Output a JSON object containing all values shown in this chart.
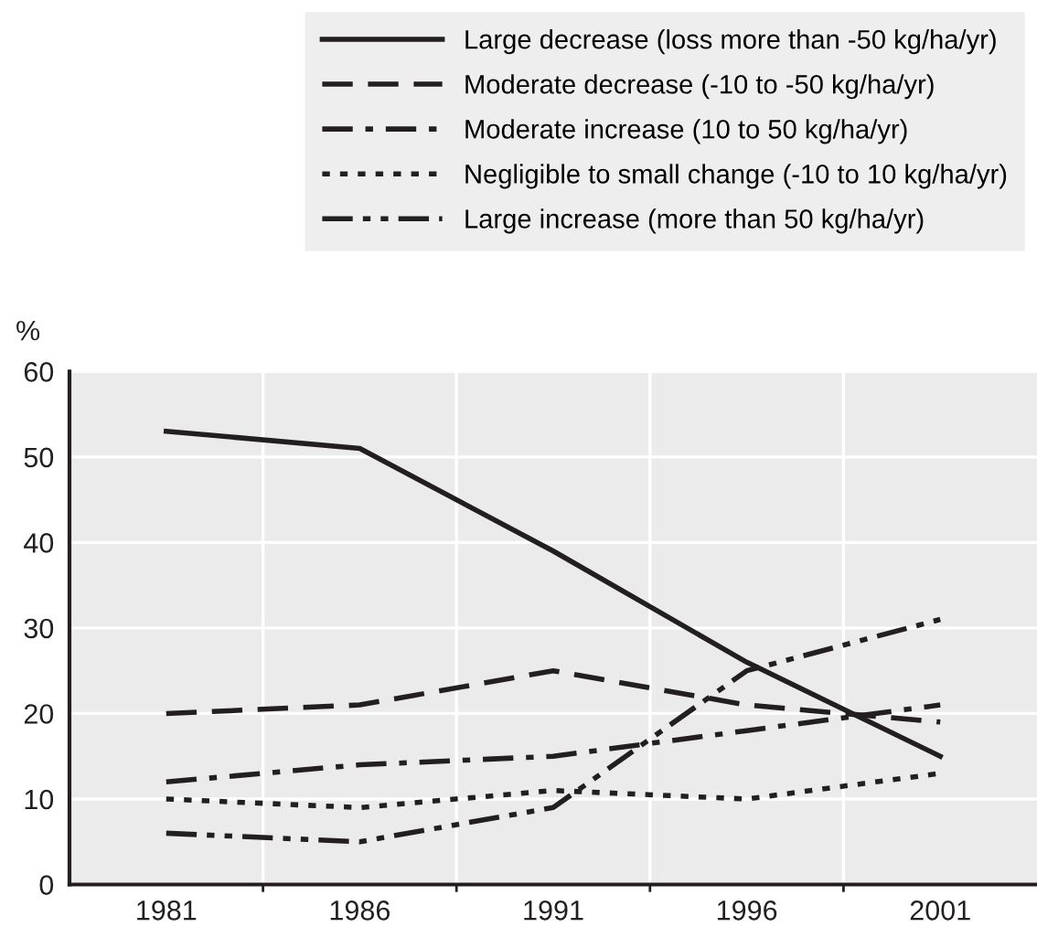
{
  "chart_data": {
    "type": "line",
    "ylabel": "%",
    "categories": [
      "1981",
      "1986",
      "1991",
      "1996",
      "2001"
    ],
    "series": [
      {
        "name": "Large decrease (loss more than -50 kg/ha/yr)",
        "color": "#231f20",
        "line_style": "solid",
        "values": [
          53,
          51,
          39,
          26,
          15
        ]
      },
      {
        "name": "Moderate decrease (-10 to -50 kg/ha/yr)",
        "color": "#231f20",
        "line_style": "dashed",
        "values": [
          20,
          21,
          25,
          21,
          19
        ]
      },
      {
        "name": "Moderate increase (10 to 50 kg/ha/yr)",
        "color": "#231f20",
        "line_style": "dashdot",
        "values": [
          12,
          14,
          15,
          18,
          21
        ]
      },
      {
        "name": "Negligible to small change (-10 to 10 kg/ha/yr)",
        "color": "#231f20",
        "line_style": "dotted",
        "values": [
          10,
          9,
          11,
          10,
          13
        ]
      },
      {
        "name": "Large increase (more than 50 kg/ha/yr)",
        "color": "#231f20",
        "line_style": "dashdotdot",
        "values": [
          6,
          5,
          9,
          25,
          31
        ]
      }
    ],
    "ylim": [
      0,
      60
    ],
    "yticks": [
      0,
      10,
      20,
      30,
      40,
      50,
      60
    ],
    "grid": true,
    "legend": "top",
    "marker": "none"
  }
}
